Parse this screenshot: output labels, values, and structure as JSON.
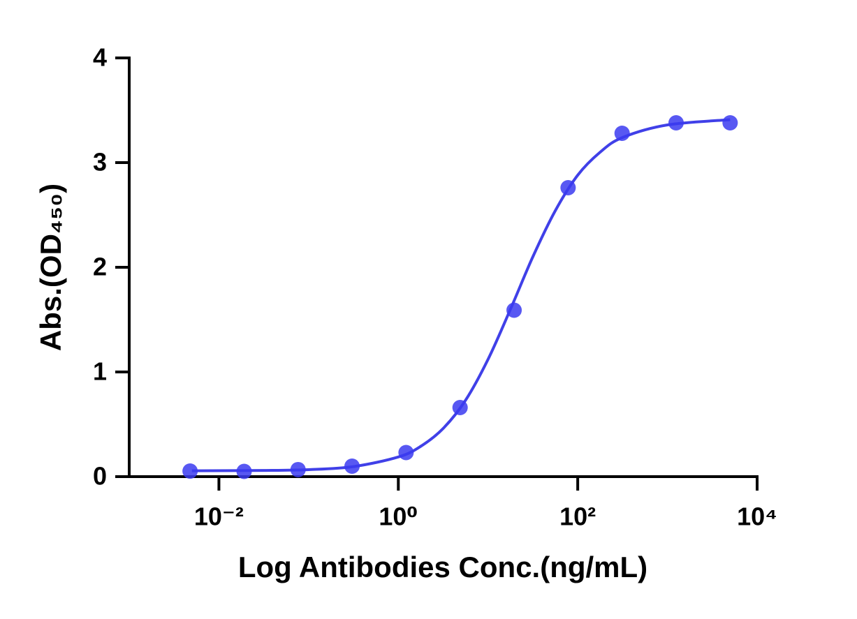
{
  "chart_data": {
    "type": "scatter",
    "x_label": "Log Antibodies Conc.(ng/mL)",
    "y_label": "Abs.(OD₄₅₀)",
    "xscale": "log",
    "xlim": [
      0.001,
      10000
    ],
    "xticks": [
      {
        "value": 0.01,
        "label": "10⁻²"
      },
      {
        "value": 1,
        "label": "10⁰"
      },
      {
        "value": 100,
        "label": "10²"
      },
      {
        "value": 10000,
        "label": "10⁴"
      }
    ],
    "ylim": [
      0,
      4
    ],
    "yticks": [
      0,
      1,
      2,
      3,
      4
    ],
    "series": [
      {
        "color": "#3b3bf0",
        "x": [
          0.00477,
          0.0191,
          0.0763,
          0.305,
          1.22,
          4.88,
          19.53,
          78.125,
          312.5,
          1250,
          5000
        ],
        "values": [
          0.053,
          0.05,
          0.067,
          0.1,
          0.23,
          0.66,
          1.59,
          2.76,
          3.28,
          3.38,
          3.38
        ]
      },
      {
        "color": "#4040e8",
        "style": "line",
        "x": [
          0.005,
          0.0316,
          0.1,
          0.316,
          1,
          1.78,
          3.16,
          5.62,
          10,
          17.8,
          31.6,
          56.2,
          100,
          178,
          316,
          1000,
          5000
        ],
        "values": [
          0.056,
          0.059,
          0.067,
          0.096,
          0.188,
          0.29,
          0.46,
          0.73,
          1.12,
          1.6,
          2.1,
          2.54,
          2.88,
          3.1,
          3.24,
          3.36,
          3.41
        ]
      }
    ]
  }
}
